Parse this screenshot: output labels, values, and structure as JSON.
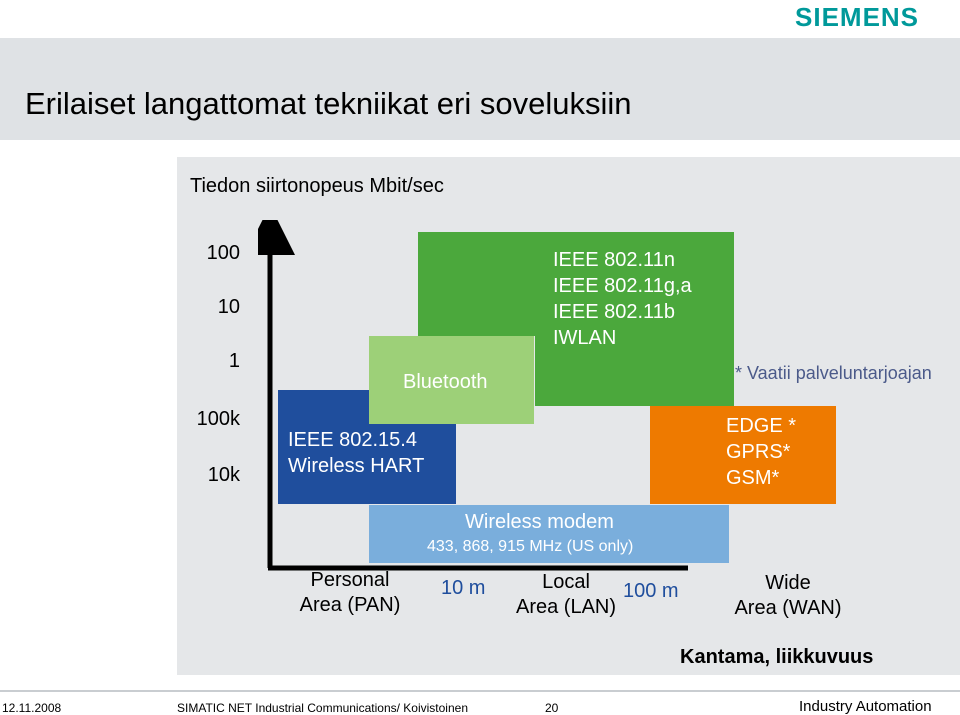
{
  "header": {
    "logo": "SIEMENS",
    "title": "Erilaiset langattomat tekniikat eri soveluksiin"
  },
  "diagram": {
    "subtitle": "Tiedon siirtonopeus Mbit/sec",
    "y_labels": [
      "100",
      "10",
      "1",
      "100k",
      "10k"
    ],
    "boxes": {
      "ieee_802154": [
        "IEEE 802.15.4",
        "Wireless HART"
      ],
      "bluetooth": "Bluetooth",
      "wlan": [
        "IEEE 802.11n",
        "IEEE 802.11g,a",
        "IEEE 802.11b",
        "IWLAN"
      ],
      "cellular": [
        "EDGE *",
        "GPRS*",
        "GSM*"
      ],
      "wireless_modem": {
        "title": "Wireless modem",
        "subtitle": "433, 868, 915 MHz (US only)"
      }
    },
    "note": "* Vaatii palveluntarjoajan",
    "x_labels": {
      "pan": [
        "Personal",
        "Area (PAN)"
      ],
      "lan": [
        "Local",
        "Area (LAN)"
      ],
      "wan": [
        "Wide",
        "Area (WAN)"
      ],
      "dist_10m": "10 m",
      "dist_100m": "100 m"
    },
    "x_axis_title": "Kantama, liikkuvuus"
  },
  "footer": {
    "date": "12.11.2008",
    "text": "SIMATIC NET Industrial Communications/ Koivistoinen",
    "page": "20",
    "right": "Industry Automation"
  },
  "colors": {
    "blue": "#1f4e9d",
    "light_green": "#9dd078",
    "green": "#4ba83c",
    "orange": "#ee7a00",
    "light_blue": "#7aaedc",
    "teal": "#00999a"
  }
}
